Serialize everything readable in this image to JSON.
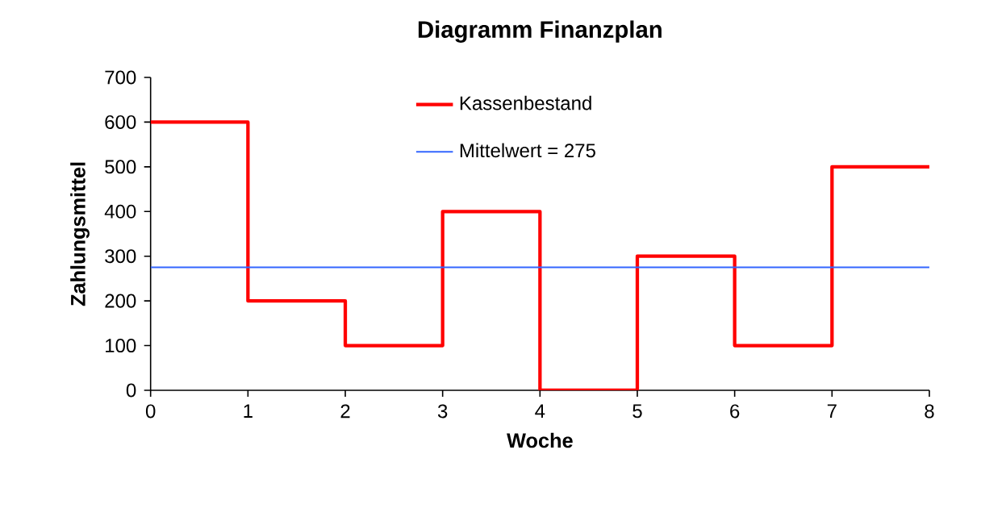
{
  "chart_data": {
    "type": "step",
    "title": "Diagramm Finanzplan",
    "xlabel": "Woche",
    "ylabel": "Zahlungsmittel",
    "x": [
      0,
      1,
      2,
      3,
      4,
      5,
      6,
      7,
      8
    ],
    "series": [
      {
        "name": "Kassenbestand",
        "color": "#ff0000",
        "values": [
          600,
          200,
          100,
          400,
          0,
          300,
          100,
          500,
          500
        ]
      }
    ],
    "ref_lines": [
      {
        "axis": "y",
        "value": 275,
        "label": "Mittelwert = 275",
        "color": "#3366ff"
      }
    ],
    "xlim": [
      0,
      8
    ],
    "ylim": [
      0,
      700
    ],
    "xticks": [
      0,
      1,
      2,
      3,
      4,
      5,
      6,
      7,
      8
    ],
    "yticks": [
      0,
      100,
      200,
      300,
      400,
      500,
      600,
      700
    ],
    "grid": false,
    "legend": "top",
    "marker": "none",
    "line_style": "solid"
  }
}
